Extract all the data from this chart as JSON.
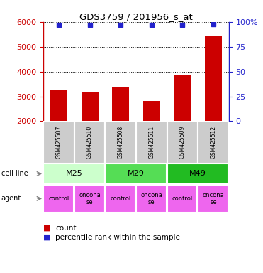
{
  "title": "GDS3759 / 201956_s_at",
  "samples": [
    "GSM425507",
    "GSM425510",
    "GSM425508",
    "GSM425511",
    "GSM425509",
    "GSM425512"
  ],
  "counts": [
    3280,
    3200,
    3400,
    2820,
    3840,
    5450
  ],
  "percentiles": [
    97,
    97,
    97,
    97,
    97,
    98
  ],
  "ylim_left": [
    2000,
    6000
  ],
  "ylim_right": [
    0,
    100
  ],
  "yticks_left": [
    2000,
    3000,
    4000,
    5000,
    6000
  ],
  "yticks_right": [
    0,
    25,
    50,
    75,
    100
  ],
  "bar_color": "#cc0000",
  "dot_color": "#2222cc",
  "cell_lines": [
    {
      "label": "M25",
      "span": [
        0,
        2
      ],
      "color": "#ccffcc"
    },
    {
      "label": "M29",
      "span": [
        2,
        4
      ],
      "color": "#55dd55"
    },
    {
      "label": "M49",
      "span": [
        4,
        6
      ],
      "color": "#22bb22"
    }
  ],
  "agents": [
    {
      "label": "control",
      "span": [
        0,
        1
      ],
      "color": "#ee66ee"
    },
    {
      "label": "oncona\nse",
      "span": [
        1,
        2
      ],
      "color": "#ee66ee"
    },
    {
      "label": "control",
      "span": [
        2,
        3
      ],
      "color": "#ee66ee"
    },
    {
      "label": "oncona\nse",
      "span": [
        3,
        4
      ],
      "color": "#ee66ee"
    },
    {
      "label": "control",
      "span": [
        4,
        5
      ],
      "color": "#ee66ee"
    },
    {
      "label": "oncona\nse",
      "span": [
        5,
        6
      ],
      "color": "#ee66ee"
    }
  ],
  "sample_box_color": "#cccccc",
  "legend_count_color": "#cc0000",
  "legend_pct_color": "#2222cc",
  "left_axis_color": "#cc0000",
  "right_axis_color": "#2222cc",
  "fig_width": 3.71,
  "fig_height": 3.84,
  "dpi": 100
}
